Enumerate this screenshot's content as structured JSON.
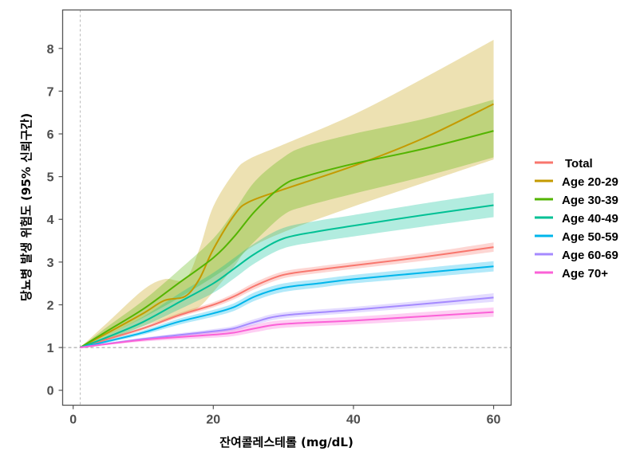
{
  "chart_data": {
    "type": "line",
    "title": "",
    "xlabel": "잔여콜레스테롤 (mg/dL)",
    "ylabel": "당뇨병 발생 위험도 (95% 신뢰구간)",
    "xlim": [
      -1.5,
      62.5
    ],
    "ylim": [
      -0.35,
      8.9
    ],
    "xticks": [
      0,
      20,
      40,
      60
    ],
    "yticks": [
      0,
      1,
      2,
      3,
      4,
      5,
      6,
      7,
      8
    ],
    "reference_lines": {
      "horizontal": 1,
      "vertical": 1
    },
    "grid": false,
    "legend_position": "right",
    "series": [
      {
        "name": "Total",
        "color": "#F8766D",
        "x": [
          1,
          5,
          10,
          15,
          20,
          23,
          26,
          30,
          35,
          40,
          50,
          60
        ],
        "y": [
          1,
          1.2,
          1.45,
          1.75,
          2.0,
          2.2,
          2.45,
          2.7,
          2.82,
          2.92,
          3.12,
          3.35
        ],
        "lo": [
          1,
          1.17,
          1.41,
          1.7,
          1.94,
          2.13,
          2.37,
          2.62,
          2.74,
          2.84,
          3.03,
          3.24
        ],
        "hi": [
          1,
          1.23,
          1.49,
          1.8,
          2.06,
          2.27,
          2.53,
          2.78,
          2.9,
          3.0,
          3.21,
          3.46
        ]
      },
      {
        "name": "Age 20-29",
        "color": "#C49A00",
        "x": [
          1,
          5,
          10,
          13,
          16,
          18,
          20,
          23,
          25,
          30,
          40,
          50,
          60
        ],
        "y": [
          1,
          1.35,
          1.8,
          2.1,
          2.2,
          2.6,
          3.3,
          4.1,
          4.4,
          4.7,
          5.25,
          5.9,
          6.7
        ],
        "lo": [
          1,
          1.2,
          1.5,
          1.65,
          1.8,
          1.95,
          2.3,
          2.9,
          3.3,
          3.7,
          4.3,
          4.85,
          5.4
        ],
        "hi": [
          1,
          1.6,
          2.35,
          2.6,
          2.6,
          3.3,
          4.3,
          5.1,
          5.4,
          5.75,
          6.45,
          7.3,
          8.2
        ]
      },
      {
        "name": "Age 30-39",
        "color": "#53B400",
        "x": [
          1,
          5,
          10,
          15,
          20,
          23,
          26,
          30,
          33,
          40,
          50,
          60
        ],
        "y": [
          1,
          1.4,
          1.9,
          2.5,
          3.1,
          3.6,
          4.2,
          4.8,
          5.0,
          5.3,
          5.65,
          6.07
        ],
        "lo": [
          1,
          1.3,
          1.7,
          2.15,
          2.65,
          3.0,
          3.5,
          4.1,
          4.3,
          4.6,
          5.0,
          5.45
        ],
        "hi": [
          1,
          1.5,
          2.1,
          2.8,
          3.55,
          4.2,
          4.9,
          5.45,
          5.7,
          6.0,
          6.35,
          6.8
        ]
      },
      {
        "name": "Age 40-49",
        "color": "#00C094",
        "x": [
          1,
          5,
          10,
          15,
          20,
          23,
          26,
          30,
          35,
          40,
          50,
          60
        ],
        "y": [
          1,
          1.25,
          1.6,
          2.05,
          2.5,
          2.85,
          3.2,
          3.55,
          3.72,
          3.85,
          4.1,
          4.33
        ],
        "lo": [
          1,
          1.2,
          1.5,
          1.88,
          2.28,
          2.62,
          2.98,
          3.32,
          3.48,
          3.6,
          3.83,
          4.05
        ],
        "hi": [
          1,
          1.3,
          1.72,
          2.25,
          2.75,
          3.1,
          3.45,
          3.8,
          3.97,
          4.1,
          4.37,
          4.62
        ]
      },
      {
        "name": "Age 50-59",
        "color": "#00B6EB",
        "x": [
          1,
          5,
          10,
          15,
          20,
          23,
          26,
          30,
          35,
          40,
          50,
          60
        ],
        "y": [
          1,
          1.15,
          1.35,
          1.6,
          1.8,
          1.95,
          2.2,
          2.4,
          2.5,
          2.6,
          2.75,
          2.9
        ],
        "lo": [
          1,
          1.12,
          1.3,
          1.53,
          1.72,
          1.86,
          2.1,
          2.3,
          2.4,
          2.5,
          2.64,
          2.78
        ],
        "hi": [
          1,
          1.18,
          1.4,
          1.67,
          1.88,
          2.04,
          2.3,
          2.5,
          2.6,
          2.7,
          2.86,
          3.02
        ]
      },
      {
        "name": "Age 60-69",
        "color": "#A58AFF",
        "x": [
          1,
          10,
          20,
          23,
          26,
          30,
          40,
          50,
          60
        ],
        "y": [
          1,
          1.2,
          1.38,
          1.45,
          1.6,
          1.75,
          1.88,
          2.02,
          2.17
        ],
        "lo": [
          1,
          1.17,
          1.33,
          1.39,
          1.53,
          1.68,
          1.81,
          1.94,
          2.07
        ],
        "hi": [
          1,
          1.23,
          1.43,
          1.51,
          1.67,
          1.82,
          1.95,
          2.1,
          2.27
        ]
      },
      {
        "name": "Age 70+",
        "color": "#FB61D7",
        "x": [
          1,
          10,
          20,
          23,
          26,
          30,
          40,
          50,
          60
        ],
        "y": [
          1,
          1.18,
          1.3,
          1.35,
          1.45,
          1.55,
          1.63,
          1.73,
          1.83
        ],
        "lo": [
          1,
          1.14,
          1.23,
          1.27,
          1.36,
          1.46,
          1.54,
          1.63,
          1.72
        ],
        "hi": [
          1,
          1.22,
          1.37,
          1.43,
          1.54,
          1.64,
          1.72,
          1.83,
          1.94
        ]
      }
    ]
  }
}
